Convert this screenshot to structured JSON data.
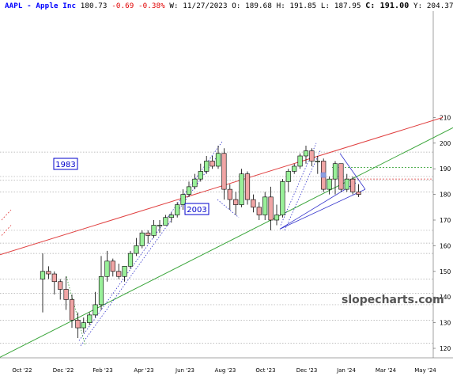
{
  "header": {
    "symbol": "AAPL - Apple Inc",
    "last": "180.73",
    "change": "-0.69 -0.38%",
    "date": "W: 11/27/2023",
    "open": "O: 189.68",
    "high": "H: 191.85",
    "low": "L: 187.95",
    "close": "C: 191.00",
    "ytd": "Y: 204.37"
  },
  "watermark": "slopecharts.com",
  "annotations": {
    "label_a": "1983",
    "label_b": "2003"
  },
  "colors": {
    "up": "#99f099",
    "down": "#f0a5a5",
    "trend_up": "#3aa53a",
    "trend_down": "#e04040",
    "channel": "#3333cc",
    "grid": "#aaaaaa"
  },
  "chart_data": {
    "type": "candlestick",
    "title": "AAPL - Apple Inc",
    "interval": "weekly",
    "ylim": [
      115,
      210
    ],
    "y_ticks": [
      120,
      130,
      140,
      150,
      160,
      170,
      180,
      190,
      200,
      210
    ],
    "x_ticks": [
      "Oct '22",
      "Dec '22",
      "Feb '23",
      "Apr '23",
      "Jun '23",
      "Aug '23",
      "Oct '23",
      "Dec '23",
      "Jan '24",
      "Mar '24",
      "May '24"
    ],
    "candles": [
      [
        147,
        157,
        134,
        150
      ],
      [
        150,
        152,
        147,
        149
      ],
      [
        149,
        150,
        141,
        146
      ],
      [
        146,
        147,
        139,
        143
      ],
      [
        143,
        148,
        135,
        139
      ],
      [
        139,
        141,
        128,
        131
      ],
      [
        131,
        134,
        124,
        128
      ],
      [
        128,
        132,
        126,
        130
      ],
      [
        130,
        134,
        129,
        133
      ],
      [
        133,
        142,
        132,
        137
      ],
      [
        137,
        156,
        135,
        148
      ],
      [
        148,
        158,
        146,
        154
      ],
      [
        154,
        155,
        148,
        150
      ],
      [
        150,
        153,
        147,
        148
      ],
      [
        148,
        152,
        146,
        152
      ],
      [
        152,
        158,
        151,
        157
      ],
      [
        157,
        163,
        156,
        160
      ],
      [
        160,
        166,
        159,
        165
      ],
      [
        165,
        166,
        161,
        164
      ],
      [
        164,
        170,
        163,
        168
      ],
      [
        168,
        170,
        165,
        168
      ],
      [
        168,
        172,
        168,
        171
      ],
      [
        171,
        173,
        169,
        172
      ],
      [
        172,
        177,
        171,
        176
      ],
      [
        176,
        182,
        174,
        180
      ],
      [
        180,
        185,
        179,
        183
      ],
      [
        183,
        188,
        182,
        186
      ],
      [
        186,
        192,
        185,
        189
      ],
      [
        189,
        195,
        188,
        193
      ],
      [
        193,
        195,
        190,
        191
      ],
      [
        191,
        199,
        190,
        196
      ],
      [
        196,
        198,
        178,
        182
      ],
      [
        182,
        184,
        174,
        178
      ],
      [
        178,
        181,
        172,
        176
      ],
      [
        176,
        190,
        175,
        188
      ],
      [
        188,
        189,
        176,
        178
      ],
      [
        178,
        180,
        173,
        175
      ],
      [
        175,
        177,
        170,
        172
      ],
      [
        172,
        181,
        170,
        179
      ],
      [
        179,
        183,
        166,
        170
      ],
      [
        170,
        176,
        168,
        172
      ],
      [
        172,
        186,
        171,
        185
      ],
      [
        185,
        190,
        181,
        189
      ],
      [
        189,
        192,
        188,
        191
      ],
      [
        191,
        196,
        190,
        195
      ],
      [
        195,
        199,
        192,
        197
      ],
      [
        197,
        198,
        191,
        193
      ],
      [
        193,
        195,
        188,
        193
      ],
      [
        193,
        194,
        181,
        182
      ],
      [
        182,
        187,
        180,
        186
      ],
      [
        186,
        193,
        180,
        192
      ],
      [
        192,
        192,
        181,
        182
      ],
      [
        182,
        188,
        181,
        186
      ],
      [
        186,
        187,
        180,
        181
      ],
      [
        181,
        184,
        179,
        180
      ]
    ]
  }
}
